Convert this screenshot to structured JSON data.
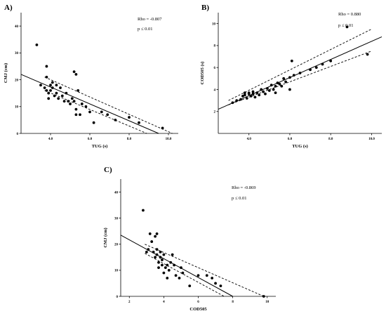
{
  "chart_data": [
    {
      "type": "scatter",
      "panel_label": "A)",
      "xlabel": "TUG (s)",
      "ylabel": "CMJ (cm)",
      "xlim": [
        2.5,
        10.5
      ],
      "ylim": [
        0,
        45
      ],
      "xticks": [
        4,
        6,
        8,
        10
      ],
      "xtick_labels": [
        "4.0",
        "6.0",
        "8.0",
        "10.0"
      ],
      "yticks": [
        0,
        10,
        20,
        30,
        40
      ],
      "yticklabels": [
        "0",
        "10",
        "20",
        "30",
        "40"
      ],
      "annotations": [
        "Rho = -0.807",
        "p ≤ 0.01"
      ],
      "fit": {
        "x": [
          2.5,
          9.5
        ],
        "y": [
          22,
          0
        ]
      },
      "ci_upper": {
        "x": [
          3.7,
          10.2
        ],
        "y": [
          21.0,
          0.0
        ]
      },
      "ci_lower": {
        "x": [
          3.7,
          8.9
        ],
        "y": [
          16.0,
          0.0
        ]
      },
      "points": [
        {
          "x": 3.3,
          "y": 33
        },
        {
          "x": 3.5,
          "y": 18
        },
        {
          "x": 3.7,
          "y": 17
        },
        {
          "x": 3.8,
          "y": 25
        },
        {
          "x": 3.8,
          "y": 21
        },
        {
          "x": 3.8,
          "y": 16
        },
        {
          "x": 3.9,
          "y": 13
        },
        {
          "x": 3.9,
          "y": 15
        },
        {
          "x": 4.0,
          "y": 18
        },
        {
          "x": 4.0,
          "y": 16
        },
        {
          "x": 4.1,
          "y": 19
        },
        {
          "x": 4.1,
          "y": 17
        },
        {
          "x": 4.2,
          "y": 14
        },
        {
          "x": 4.3,
          "y": 18
        },
        {
          "x": 4.3,
          "y": 15
        },
        {
          "x": 4.4,
          "y": 13
        },
        {
          "x": 4.5,
          "y": 17
        },
        {
          "x": 4.6,
          "y": 14
        },
        {
          "x": 4.7,
          "y": 12
        },
        {
          "x": 4.8,
          "y": 15
        },
        {
          "x": 4.9,
          "y": 12
        },
        {
          "x": 5.0,
          "y": 11
        },
        {
          "x": 5.1,
          "y": 13
        },
        {
          "x": 5.2,
          "y": 23
        },
        {
          "x": 5.3,
          "y": 22
        },
        {
          "x": 5.2,
          "y": 12
        },
        {
          "x": 5.3,
          "y": 9
        },
        {
          "x": 5.3,
          "y": 7
        },
        {
          "x": 5.4,
          "y": 16
        },
        {
          "x": 5.5,
          "y": 7
        },
        {
          "x": 5.6,
          "y": 11
        },
        {
          "x": 5.8,
          "y": 10
        },
        {
          "x": 6.0,
          "y": 8
        },
        {
          "x": 6.2,
          "y": 4
        },
        {
          "x": 6.6,
          "y": 8
        },
        {
          "x": 6.9,
          "y": 7
        },
        {
          "x": 7.3,
          "y": 5
        },
        {
          "x": 8.0,
          "y": 6
        },
        {
          "x": 8.5,
          "y": 4
        },
        {
          "x": 9.7,
          "y": 2
        }
      ]
    },
    {
      "type": "scatter",
      "panel_label": "B)",
      "xlabel": "TUG (s)",
      "ylabel": "COD505 (s)",
      "xlim": [
        2.5,
        10.5
      ],
      "ylim": [
        0,
        11
      ],
      "xticks": [
        4,
        6,
        8,
        10
      ],
      "xtick_labels": [
        "4.0",
        "6.0",
        "8.0",
        "10.0"
      ],
      "yticks": [
        2,
        4,
        6,
        8,
        10
      ],
      "yticklabels": [
        "2",
        "4",
        "6",
        "8",
        "10"
      ],
      "annotations": [
        "Rho = 0.880",
        "p ≤ 0.01"
      ],
      "fit": {
        "x": [
          2.5,
          10.5
        ],
        "y": [
          2.2,
          8.8
        ]
      },
      "ci_upper": {
        "x": [
          3.0,
          10.0
        ],
        "y": [
          3.0,
          9.5
        ]
      },
      "ci_lower": {
        "x": [
          3.0,
          10.0
        ],
        "y": [
          2.6,
          7.5
        ]
      },
      "points": [
        {
          "x": 3.2,
          "y": 2.8
        },
        {
          "x": 3.4,
          "y": 3.0
        },
        {
          "x": 3.6,
          "y": 3.1
        },
        {
          "x": 3.7,
          "y": 3.4
        },
        {
          "x": 3.8,
          "y": 3.5
        },
        {
          "x": 3.8,
          "y": 3.7
        },
        {
          "x": 3.9,
          "y": 3.2
        },
        {
          "x": 4.0,
          "y": 3.6
        },
        {
          "x": 4.0,
          "y": 3.7
        },
        {
          "x": 4.1,
          "y": 3.4
        },
        {
          "x": 4.2,
          "y": 3.6
        },
        {
          "x": 4.2,
          "y": 3.8
        },
        {
          "x": 4.3,
          "y": 3.3
        },
        {
          "x": 4.4,
          "y": 3.7
        },
        {
          "x": 4.5,
          "y": 3.5
        },
        {
          "x": 4.6,
          "y": 4.0
        },
        {
          "x": 4.7,
          "y": 3.8
        },
        {
          "x": 4.8,
          "y": 3.6
        },
        {
          "x": 4.9,
          "y": 4.1
        },
        {
          "x": 5.0,
          "y": 3.9
        },
        {
          "x": 5.1,
          "y": 4.4
        },
        {
          "x": 5.2,
          "y": 4.0
        },
        {
          "x": 5.3,
          "y": 4.3
        },
        {
          "x": 5.3,
          "y": 3.7
        },
        {
          "x": 5.4,
          "y": 4.6
        },
        {
          "x": 5.5,
          "y": 4.5
        },
        {
          "x": 5.6,
          "y": 4.3
        },
        {
          "x": 5.7,
          "y": 5.0
        },
        {
          "x": 5.8,
          "y": 4.7
        },
        {
          "x": 6.0,
          "y": 5.1
        },
        {
          "x": 6.1,
          "y": 6.6
        },
        {
          "x": 6.0,
          "y": 4.0
        },
        {
          "x": 6.2,
          "y": 5.3
        },
        {
          "x": 6.5,
          "y": 5.5
        },
        {
          "x": 7.0,
          "y": 5.8
        },
        {
          "x": 7.3,
          "y": 6.0
        },
        {
          "x": 7.6,
          "y": 6.3
        },
        {
          "x": 8.0,
          "y": 6.6
        },
        {
          "x": 8.8,
          "y": 9.7
        },
        {
          "x": 9.8,
          "y": 7.2
        }
      ]
    },
    {
      "type": "scatter",
      "panel_label": "C)",
      "xlabel": "COD505",
      "ylabel": "CMJ (cm)",
      "xlim": [
        1.5,
        10.5
      ],
      "ylim": [
        0,
        45
      ],
      "xticks": [
        2,
        4,
        6,
        8,
        10
      ],
      "xtick_labels": [
        "2",
        "4",
        "6",
        "8",
        "10"
      ],
      "yticks": [
        0,
        10,
        20,
        30,
        40
      ],
      "yticklabels": [
        "0",
        "10",
        "20",
        "30",
        "40"
      ],
      "annotations": [
        "Rho = -0.869",
        "p ≤ 0.01"
      ],
      "fit": {
        "x": [
          1.5,
          8.0
        ],
        "y": [
          23.5,
          0
        ]
      },
      "ci_upper": {
        "x": [
          2.9,
          9.8
        ],
        "y": [
          20.0,
          0.0
        ]
      },
      "ci_lower": {
        "x": [
          2.9,
          7.5
        ],
        "y": [
          16.5,
          0.0
        ]
      },
      "points": [
        {
          "x": 2.8,
          "y": 33
        },
        {
          "x": 3.0,
          "y": 17
        },
        {
          "x": 3.1,
          "y": 18
        },
        {
          "x": 3.2,
          "y": 24
        },
        {
          "x": 3.3,
          "y": 21
        },
        {
          "x": 3.4,
          "y": 17
        },
        {
          "x": 3.5,
          "y": 23
        },
        {
          "x": 3.5,
          "y": 15
        },
        {
          "x": 3.6,
          "y": 24
        },
        {
          "x": 3.6,
          "y": 18
        },
        {
          "x": 3.6,
          "y": 16
        },
        {
          "x": 3.7,
          "y": 13
        },
        {
          "x": 3.7,
          "y": 11
        },
        {
          "x": 3.8,
          "y": 17
        },
        {
          "x": 3.8,
          "y": 15
        },
        {
          "x": 3.9,
          "y": 12
        },
        {
          "x": 3.9,
          "y": 14
        },
        {
          "x": 4.0,
          "y": 9
        },
        {
          "x": 4.0,
          "y": 16
        },
        {
          "x": 4.1,
          "y": 11
        },
        {
          "x": 4.2,
          "y": 12
        },
        {
          "x": 4.2,
          "y": 7
        },
        {
          "x": 4.3,
          "y": 10
        },
        {
          "x": 4.4,
          "y": 13
        },
        {
          "x": 4.5,
          "y": 16
        },
        {
          "x": 4.6,
          "y": 12
        },
        {
          "x": 4.7,
          "y": 8
        },
        {
          "x": 4.9,
          "y": 7
        },
        {
          "x": 5.0,
          "y": 11
        },
        {
          "x": 5.1,
          "y": 9
        },
        {
          "x": 5.5,
          "y": 4
        },
        {
          "x": 6.0,
          "y": 8
        },
        {
          "x": 6.5,
          "y": 8
        },
        {
          "x": 6.8,
          "y": 7
        },
        {
          "x": 7.0,
          "y": 5
        },
        {
          "x": 7.3,
          "y": 4
        },
        {
          "x": 9.8,
          "y": 0
        }
      ]
    }
  ]
}
